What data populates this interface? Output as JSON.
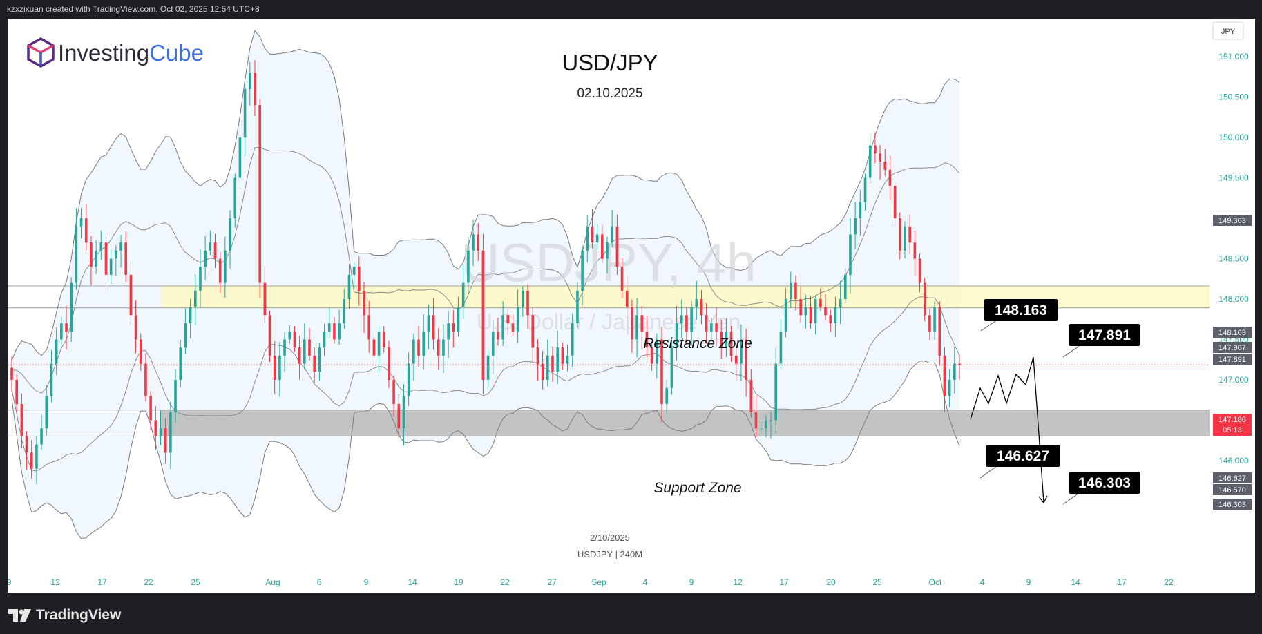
{
  "header": {
    "attribution": "kzxzixuan created with TradingView.com, Oct 02, 2025 12:54 UTC+8"
  },
  "logo": {
    "brand_part1": "Investing",
    "brand_part2": "Cube"
  },
  "footer": {
    "brand": "TradingView"
  },
  "chart": {
    "title": "USD/JPY",
    "date": "02.10.2025",
    "watermark_symbol": "USDJPY, 4h",
    "watermark_name": "U.S. Dollar / Japanese Yen",
    "currency_label": "JPY",
    "bottom_date": "2/10/2025",
    "bottom_info": "USDJPY | 240M",
    "countdown": "05:13"
  },
  "colors": {
    "up": "#26a69a",
    "down": "#f23645",
    "resistance": "#fff9c4",
    "support": "#bdbdbd",
    "band": "#e3f2fd",
    "axis_text": "#26a69a"
  },
  "chart_data": {
    "type": "candlestick",
    "timeframe": "4h",
    "yrange": [
      145.6,
      151.5
    ],
    "y_ticks": [
      "151.000",
      "150.500",
      "150.000",
      "149.500",
      "149.000",
      "148.500",
      "148.000",
      "147.500",
      "147.000",
      "146.500",
      "146.000"
    ],
    "x_ticks": [
      "9",
      "12",
      "17",
      "22",
      "25",
      "Aug",
      "6",
      "9",
      "14",
      "19",
      "22",
      "27",
      "Sep",
      "4",
      "9",
      "12",
      "17",
      "20",
      "25",
      "Oct",
      "4",
      "9",
      "14",
      "17",
      "22"
    ],
    "zones": [
      {
        "label": "Resistance Zone",
        "from": 147.891,
        "to": 148.163
      },
      {
        "label": "Support Zone",
        "from": 146.303,
        "to": 146.627
      }
    ],
    "price_tags": [
      {
        "value": "149.363",
        "style": "gray"
      },
      {
        "value": "148.163",
        "style": "gray"
      },
      {
        "value": "147.967",
        "style": "gray"
      },
      {
        "value": "147.891",
        "style": "gray"
      },
      {
        "value": "147.186",
        "style": "red"
      },
      {
        "value": "146.627",
        "style": "gray"
      },
      {
        "value": "146.570",
        "style": "gray"
      },
      {
        "value": "146.303",
        "style": "gray"
      }
    ],
    "callouts": [
      "148.163",
      "147.891",
      "146.627",
      "146.303"
    ],
    "last_price": 147.186,
    "closes": [
      147.0,
      146.7,
      146.3,
      146.1,
      145.9,
      146.2,
      146.4,
      146.8,
      147.2,
      147.5,
      147.7,
      147.6,
      148.2,
      148.9,
      149.0,
      148.7,
      148.4,
      148.6,
      148.7,
      148.3,
      148.5,
      148.6,
      148.7,
      148.3,
      147.8,
      147.5,
      147.2,
      146.8,
      146.5,
      146.3,
      146.4,
      146.1,
      146.6,
      147.0,
      147.4,
      147.7,
      147.9,
      148.1,
      148.4,
      148.6,
      148.7,
      148.5,
      148.2,
      148.6,
      149.0,
      149.5,
      150.0,
      150.6,
      150.8,
      150.4,
      148.2,
      147.8,
      147.3,
      147.0,
      147.3,
      147.5,
      147.6,
      147.4,
      147.2,
      147.5,
      147.3,
      147.1,
      147.4,
      147.6,
      147.7,
      147.5,
      147.7,
      148.0,
      148.3,
      148.4,
      148.1,
      147.8,
      147.5,
      147.3,
      147.6,
      147.4,
      147.0,
      146.7,
      146.4,
      146.8,
      147.2,
      147.5,
      147.3,
      147.6,
      147.8,
      147.5,
      147.3,
      147.5,
      147.7,
      147.6,
      147.9,
      148.2,
      148.6,
      148.8,
      148.6,
      147.0,
      147.3,
      147.6,
      147.5,
      147.8,
      147.7,
      147.6,
      147.9,
      148.1,
      147.8,
      147.4,
      147.2,
      147.0,
      147.3,
      147.1,
      147.4,
      147.2,
      147.3,
      147.7,
      148.1,
      148.6,
      148.9,
      148.7,
      148.8,
      148.5,
      148.7,
      148.9,
      148.4,
      148.1,
      147.9,
      147.5,
      147.8,
      147.6,
      147.4,
      147.2,
      147.5,
      146.7,
      146.9,
      147.4,
      147.7,
      147.8,
      147.6,
      147.9,
      148.0,
      147.8,
      147.6,
      147.7,
      147.6,
      147.4,
      147.6,
      147.3,
      147.2,
      147.5,
      147.0,
      146.6,
      146.4,
      146.4,
      146.5,
      146.5,
      147.2,
      147.6,
      148.0,
      148.2,
      148.0,
      147.8,
      147.9,
      147.7,
      148.0,
      147.9,
      147.8,
      147.7,
      147.9,
      148.0,
      148.3,
      148.8,
      149.0,
      149.2,
      149.5,
      149.9,
      149.8,
      149.7,
      149.6,
      149.4,
      149.0,
      148.6,
      148.9,
      148.7,
      148.5,
      148.2,
      147.8,
      147.6,
      147.9,
      147.3,
      146.8,
      147.0,
      147.2,
      147.186
    ]
  }
}
